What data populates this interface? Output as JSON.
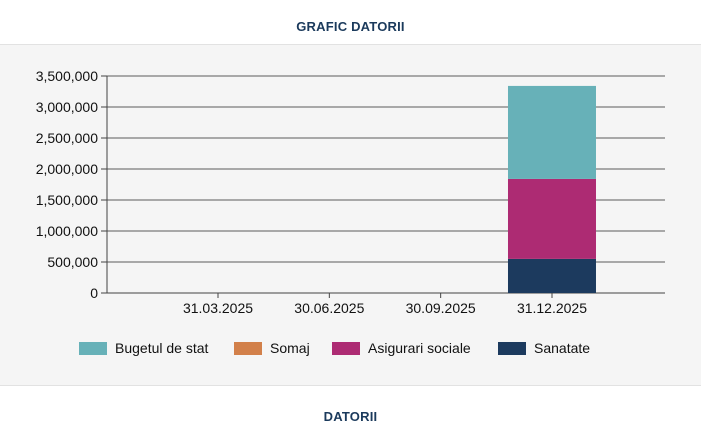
{
  "header": {
    "title": "GRAFIC DATORII"
  },
  "footer": {
    "title": "DATORII"
  },
  "chart_data": {
    "type": "bar",
    "stacked": true,
    "categories": [
      "31.03.2025",
      "30.06.2025",
      "30.09.2025",
      "31.12.2025"
    ],
    "series": [
      {
        "name": "Sanatate",
        "color": "#1c3a5e",
        "values": [
          0,
          0,
          0,
          550000
        ]
      },
      {
        "name": "Somaj",
        "color": "#d2804a",
        "values": [
          0,
          0,
          0,
          0
        ]
      },
      {
        "name": "Asigurari sociale",
        "color": "#ad2b73",
        "values": [
          0,
          0,
          0,
          1290000
        ]
      },
      {
        "name": "Bugetul de stat",
        "color": "#67b1b8",
        "values": [
          0,
          0,
          0,
          1500000
        ]
      }
    ],
    "legend_order": [
      "Bugetul de stat",
      "Somaj",
      "Asigurari sociale",
      "Sanatate"
    ],
    "ylim": [
      0,
      3500000
    ],
    "yticks": [
      "0",
      "500,000",
      "1,000,000",
      "1,500,000",
      "2,000,000",
      "2,500,000",
      "3,000,000",
      "3,500,000"
    ],
    "grid": true,
    "legend_position": "bottom"
  }
}
